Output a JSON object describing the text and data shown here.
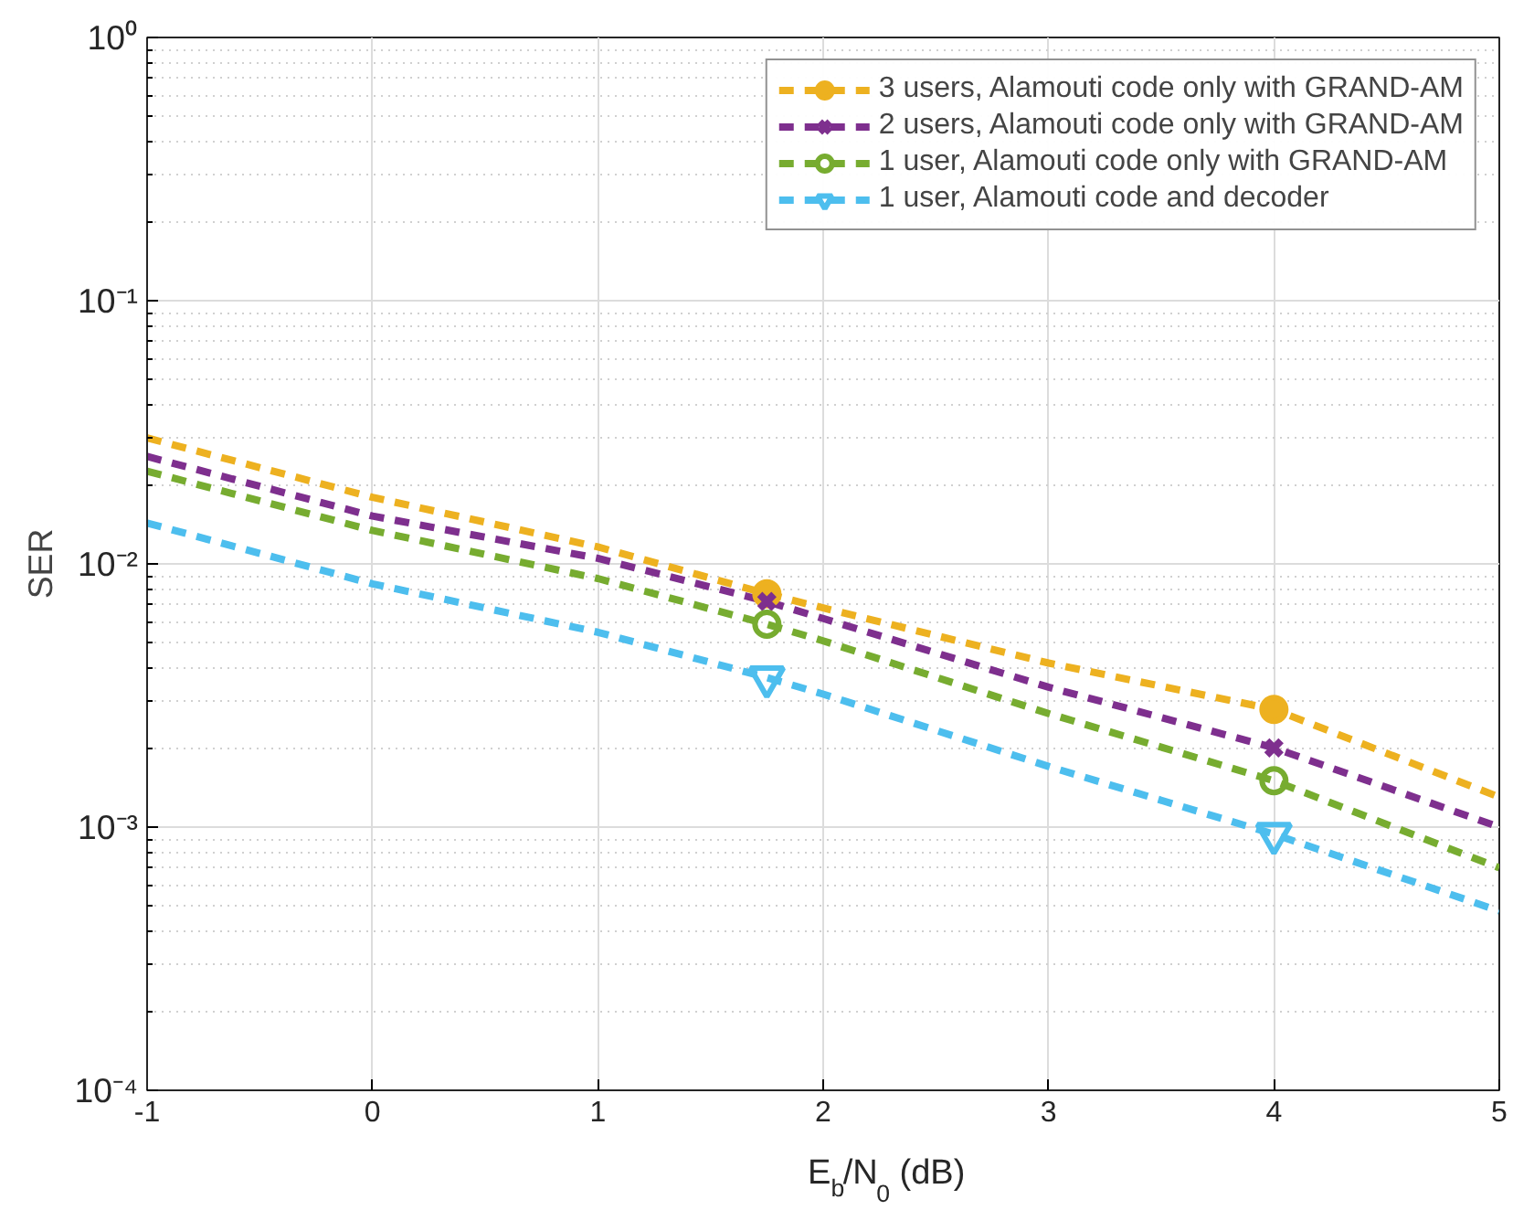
{
  "chart_data": {
    "type": "line",
    "xlabel": "E$_{b}$/N$_{0}$ (dB)",
    "ylabel": "SER",
    "xlim": [
      -1,
      5
    ],
    "xticks": [
      -1,
      0,
      1,
      2,
      3,
      4,
      5
    ],
    "ylim": [
      0.0001,
      1
    ],
    "yticks": [
      {
        "value": 0.0001,
        "label": "10⁻⁴"
      },
      {
        "value": 0.001,
        "label": "10⁻³"
      },
      {
        "value": 0.01,
        "label": "10⁻²"
      },
      {
        "value": 0.1,
        "label": "10⁻¹"
      },
      {
        "value": 1,
        "label": "10⁰"
      }
    ],
    "log": "y",
    "grid": true,
    "legend": "top right",
    "line_style": "dashed",
    "marker": "none",
    "series": [
      {
        "name": "3 users, Alamouti code only with GRAND-AM",
        "color": "#edb120",
        "x": [
          -1,
          0,
          1,
          1.75,
          2,
          3,
          4,
          5
        ],
        "values": [
          0.0301,
          0.0179,
          0.0116,
          0.0077,
          0.0068,
          0.0042,
          0.0028,
          0.0013
        ]
      },
      {
        "name": "2 users, Alamouti code only with GRAND-AM",
        "color": "#7e2f8e",
        "x": [
          -1,
          0,
          1,
          1.75,
          2,
          3,
          4,
          5
        ],
        "values": [
          0.0256,
          0.0152,
          0.0105,
          0.0072,
          0.0062,
          0.0034,
          0.002,
          0.001
        ]
      },
      {
        "name": "1 user, Alamouti code only with GRAND-AM",
        "color": "#77ac30",
        "x": [
          -1,
          0,
          1,
          1.75,
          2,
          3,
          4,
          5
        ],
        "values": [
          0.0225,
          0.0134,
          0.0088,
          0.0059,
          0.0051,
          0.0027,
          0.0015,
          0.0007
        ]
      },
      {
        "name": "1 user, Alamouti code and decoder",
        "color": "#4dbeee",
        "x": [
          -1,
          0,
          1,
          1.75,
          2,
          3,
          4,
          5
        ],
        "values": [
          0.0143,
          0.0084,
          0.0055,
          0.0037,
          0.0032,
          0.0017,
          0.00094,
          0.00048
        ]
      },
      {
        "type": "scatter",
        "marker": "circle",
        "color": "#edb120",
        "x": [
          1.75,
          4
        ],
        "values": [
          0.0077,
          0.0028
        ]
      },
      {
        "type": "scatter",
        "marker": "cross",
        "color": "#7e2f8e",
        "x": [
          1.75,
          4
        ],
        "values": [
          0.0072,
          0.002
        ]
      },
      {
        "type": "scatter",
        "marker": "circle_open",
        "color": "#77ac30",
        "x": [
          1.75,
          4
        ],
        "values": [
          0.0059,
          0.0015
        ]
      },
      {
        "type": "scatter",
        "marker": "triangle",
        "color": "#4dbeee",
        "x": [
          1.75,
          4
        ],
        "values": [
          0.0037,
          0.00094
        ]
      }
    ]
  }
}
